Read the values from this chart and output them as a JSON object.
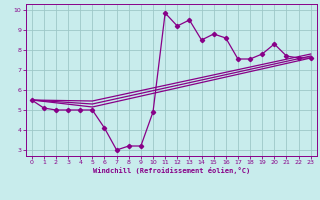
{
  "xlabel": "Windchill (Refroidissement éolien,°C)",
  "background_color": "#c8ecec",
  "line_color": "#880088",
  "grid_color": "#9dc8c8",
  "xlim": [
    -0.5,
    23.5
  ],
  "ylim": [
    2.7,
    10.3
  ],
  "xticks": [
    0,
    1,
    2,
    3,
    4,
    5,
    6,
    7,
    8,
    9,
    10,
    11,
    12,
    13,
    14,
    15,
    16,
    17,
    18,
    19,
    20,
    21,
    22,
    23
  ],
  "yticks": [
    3,
    4,
    5,
    6,
    7,
    8,
    9,
    10
  ],
  "line1_x": [
    0,
    1,
    2,
    3,
    4,
    5,
    6,
    7,
    8,
    9,
    10,
    11,
    12,
    13,
    14,
    15,
    16,
    17,
    18,
    19,
    20,
    21,
    22,
    23
  ],
  "line1_y": [
    5.5,
    5.1,
    5.0,
    5.0,
    5.0,
    5.0,
    4.1,
    3.0,
    3.2,
    3.2,
    4.9,
    9.85,
    9.2,
    9.5,
    8.5,
    8.8,
    8.6,
    7.55,
    7.55,
    7.8,
    8.3,
    7.7,
    7.6,
    7.6
  ],
  "line2_x": [
    0,
    5,
    23
  ],
  "line2_y": [
    5.5,
    5.15,
    7.6
  ],
  "line3_x": [
    0,
    5,
    23
  ],
  "line3_y": [
    5.5,
    5.3,
    7.7
  ],
  "line4_x": [
    0,
    5,
    23
  ],
  "line4_y": [
    5.5,
    5.45,
    7.8
  ]
}
